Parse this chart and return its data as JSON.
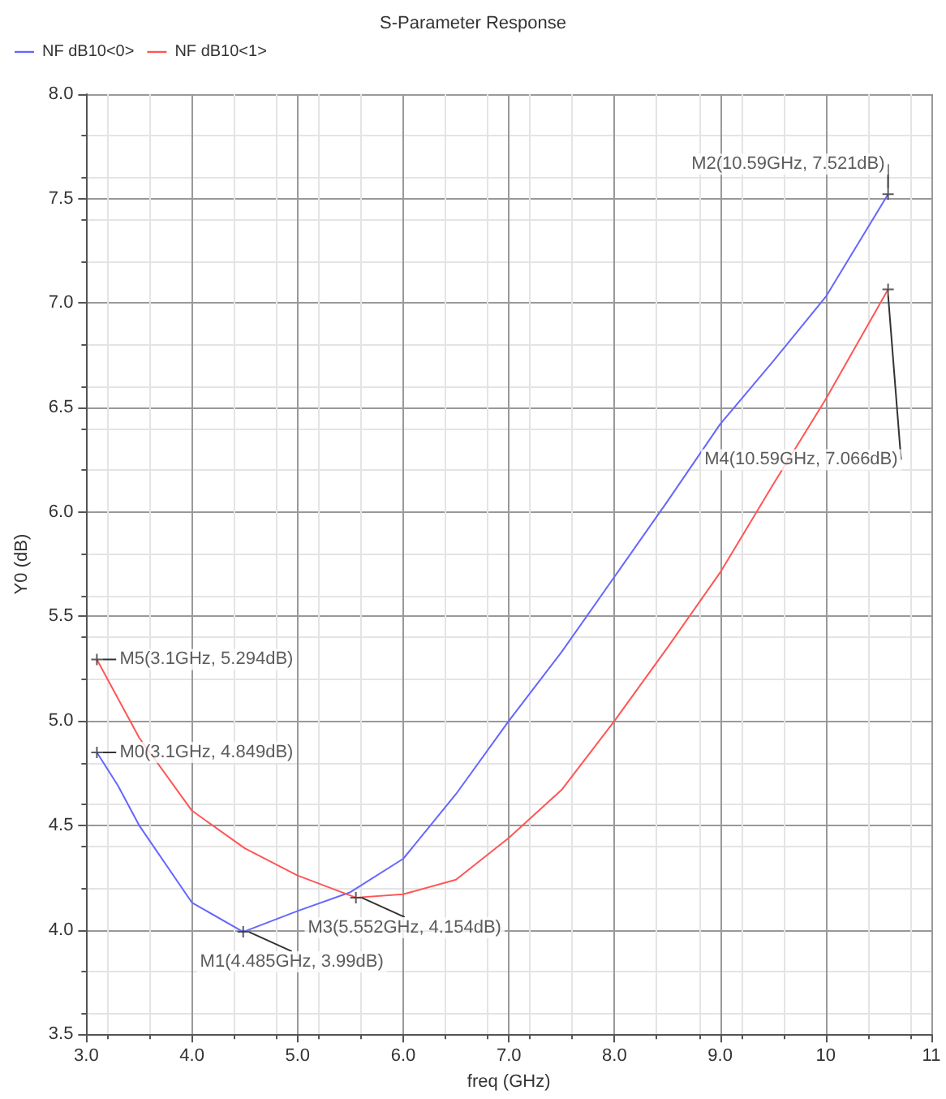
{
  "chart_data": {
    "type": "line",
    "title": "S-Parameter Response",
    "xlabel": "freq (GHz)",
    "ylabel": "Y0 (dB)",
    "xlim": [
      3,
      11
    ],
    "xticks": [
      {
        "value": 3,
        "label": "3.0"
      },
      {
        "value": 4,
        "label": "4.0"
      },
      {
        "value": 5,
        "label": "5.0"
      },
      {
        "value": 6,
        "label": "6.0"
      },
      {
        "value": 7,
        "label": "7.0"
      },
      {
        "value": 8,
        "label": "8.0"
      },
      {
        "value": 9,
        "label": "9.0"
      },
      10,
      11
    ],
    "ylim": [
      3.5,
      8
    ],
    "yticks": [
      3.5,
      {
        "value": 4,
        "label": "4.0"
      },
      4.5,
      {
        "value": 5,
        "label": "5.0"
      },
      5.5,
      {
        "value": 6,
        "label": "6.0"
      },
      6.5,
      {
        "value": 7,
        "label": "7.0"
      },
      7.5,
      {
        "value": 8,
        "label": "8.0"
      }
    ],
    "grid": true,
    "legend": "top left",
    "marker": "none",
    "line_style": "solid",
    "series": [
      {
        "name": "NF dB10<0>",
        "color": "#6666ff",
        "x": [
          3.1,
          3.3,
          3.5,
          4,
          4.485,
          5,
          5.5,
          6,
          6.5,
          7,
          7.5,
          8,
          8.5,
          9,
          9.5,
          10,
          10.59
        ],
        "values": [
          4.849,
          4.69,
          4.5,
          4.13,
          3.99,
          4.09,
          4.18,
          4.34,
          4.65,
          5.0,
          5.33,
          5.69,
          6.05,
          6.42,
          6.72,
          7.03,
          7.521
        ]
      },
      {
        "name": "NF dB10<1>",
        "color": "#ff5555",
        "x": [
          3.1,
          3.5,
          4,
          4.5,
          5,
          5.552,
          6,
          6.5,
          7,
          7.5,
          8,
          8.5,
          9,
          9.5,
          10,
          10.59
        ],
        "values": [
          5.294,
          4.92,
          4.57,
          4.39,
          4.26,
          4.154,
          4.17,
          4.24,
          4.44,
          4.67,
          5.0,
          5.35,
          5.71,
          6.13,
          6.54,
          7.066
        ]
      }
    ],
    "annotations": [
      {
        "text": "M0(3.1GHz, 4.849dB)",
        "x": 3.1,
        "y": 4.849
      },
      {
        "text": "M1(4.485GHz, 3.99dB)",
        "x": 4.485,
        "y": 3.99
      },
      {
        "text": "M2(10.59GHz, 7.521dB)",
        "x": 10.59,
        "y": 7.521
      },
      {
        "text": "M3(5.552GHz, 4.154dB)",
        "x": 5.552,
        "y": 4.154
      },
      {
        "text": "M4(10.59GHz, 7.066dB)",
        "x": 10.59,
        "y": 7.066
      },
      {
        "text": "M5(3.1GHz, 5.294dB)",
        "x": 3.1,
        "y": 5.294
      }
    ]
  }
}
